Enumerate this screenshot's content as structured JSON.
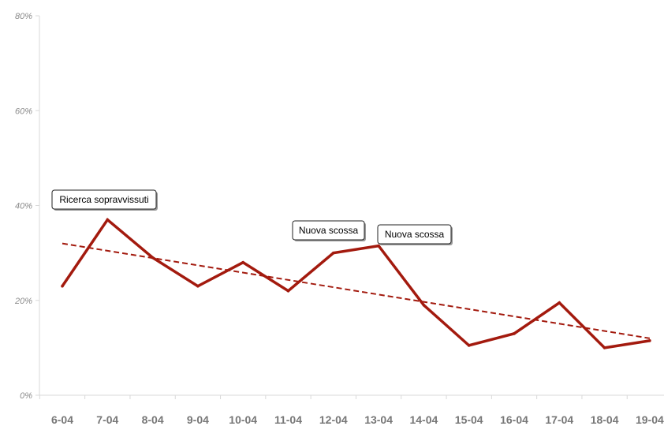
{
  "chart_data": {
    "type": "line",
    "title": "",
    "xlabel": "",
    "ylabel": "",
    "categories": [
      "6-04",
      "7-04",
      "8-04",
      "9-04",
      "10-04",
      "11-04",
      "12-04",
      "13-04",
      "14-04",
      "15-04",
      "16-04",
      "17-04",
      "18-04",
      "19-04"
    ],
    "series": [
      {
        "values": [
          23,
          37,
          29,
          23,
          28,
          22,
          30,
          31.5,
          19,
          10.5,
          13,
          19.5,
          10,
          11.5
        ],
        "color": "#a31a0e"
      }
    ],
    "trendline": {
      "style": "dashed",
      "color": "#a31a0e",
      "start": 32,
      "end": 12
    },
    "ylim": [
      0,
      80
    ],
    "yticks": [
      0,
      20,
      40,
      60,
      80
    ],
    "ytick_labels": [
      "0%",
      "20%",
      "40%",
      "60%",
      "80%"
    ],
    "grid": false,
    "legend": "none",
    "annotations": [
      {
        "text": "Ricerca sopravvissuti",
        "category": "7-04"
      },
      {
        "text": "Nuova scossa",
        "category": "12-04"
      },
      {
        "text": "Nuova scossa",
        "category": "13-04"
      }
    ],
    "colors": {
      "line": "#a31a0e",
      "axis": "#d9d9d9",
      "tick_text": "#8a8a8a"
    }
  }
}
